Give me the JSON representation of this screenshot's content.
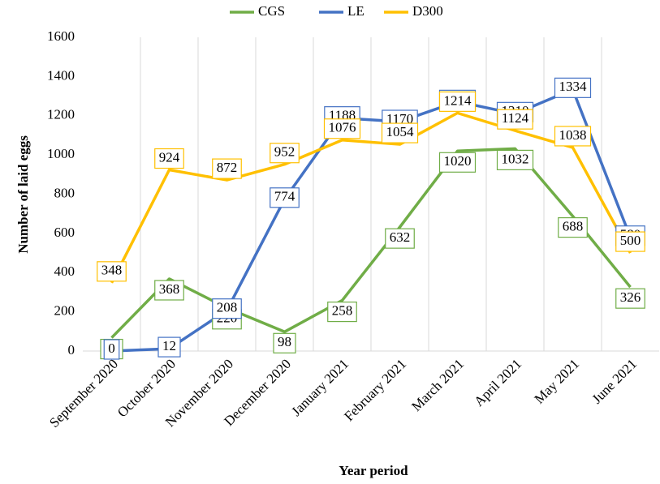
{
  "chart_data": {
    "type": "line",
    "x_label": "Year period",
    "y_label": "Number of laid eggs",
    "categories": [
      "September 2020",
      "October 2020",
      "November 2020",
      "December 2020",
      "January 2021",
      "February 2021",
      "March 2021",
      "April 2021",
      "May 2021",
      "June 2021"
    ],
    "series": [
      {
        "name": "CGS",
        "color": "#70ad47",
        "values": [
          68,
          368,
          220,
          98,
          258,
          632,
          1020,
          1032,
          688,
          326
        ]
      },
      {
        "name": "LE",
        "color": "#4472c4",
        "values": [
          0,
          12,
          208,
          774,
          1188,
          1170,
          1272,
          1210,
          1334,
          580
        ]
      },
      {
        "name": "D300",
        "color": "#ffc000",
        "values": [
          348,
          924,
          872,
          952,
          1076,
          1054,
          1214,
          1124,
          1038,
          500
        ]
      }
    ],
    "ylim": [
      0,
      1600
    ],
    "yticks": [
      0,
      200,
      400,
      600,
      800,
      1000,
      1200,
      1400,
      1600
    ],
    "grid": true,
    "legend": "top"
  }
}
